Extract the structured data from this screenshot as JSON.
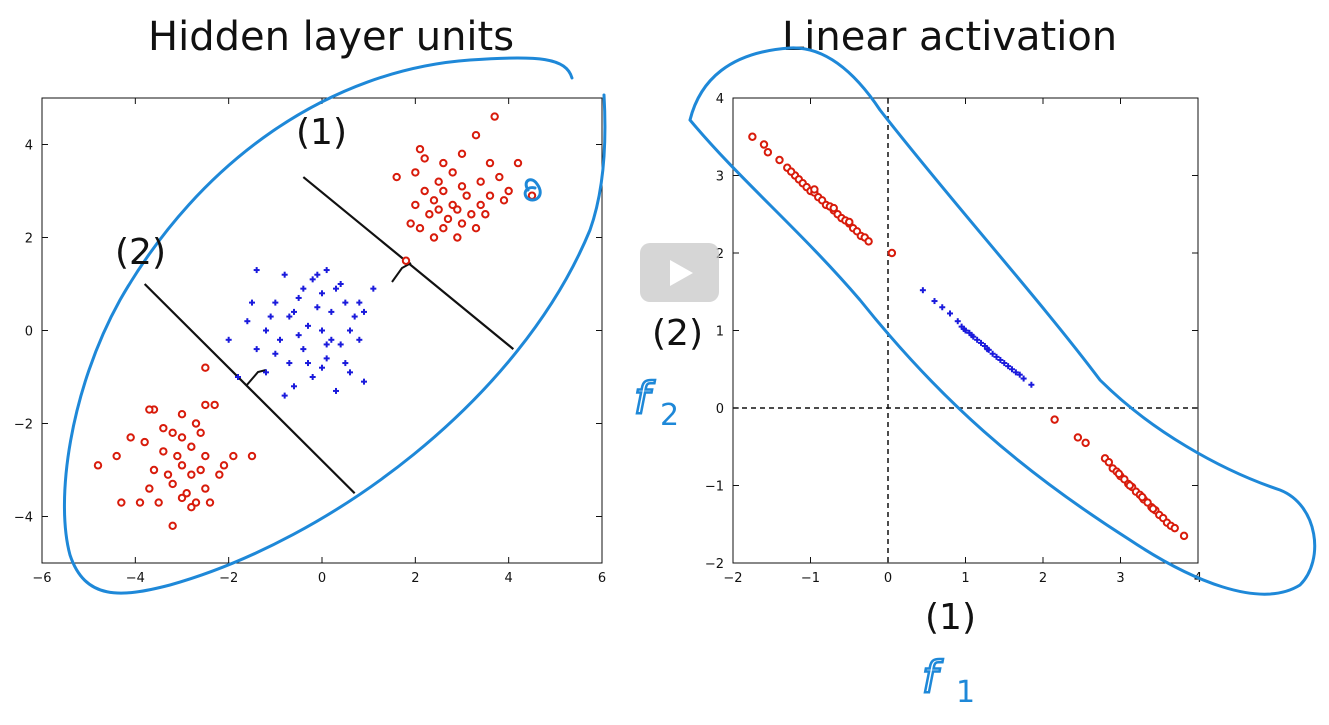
{
  "titles": {
    "left": "Hidden layer units",
    "right": "Linear activation"
  },
  "annotations": {
    "left_line1": "(1)",
    "left_line2": "(2)",
    "right_x": "(1)",
    "right_y": "(2)",
    "hand_f1": "f",
    "hand_f1_sub": "1",
    "hand_f2": "f",
    "hand_f2_sub": "2"
  },
  "colors": {
    "red": "#d81b0b",
    "blue": "#1a1adc",
    "ink": "#1e88d8"
  },
  "chart_data": [
    {
      "type": "scatter",
      "title": "",
      "xlim": [
        -6,
        6
      ],
      "ylim": [
        -5,
        5
      ],
      "xticks": [
        -6,
        -4,
        -2,
        0,
        2,
        4,
        6
      ],
      "yticks": [
        -4,
        -2,
        0,
        2,
        4
      ],
      "series": [
        {
          "marker": "o",
          "color": "#d81b0b",
          "points": [
            [
              2.1,
              3.9
            ],
            [
              2.6,
              3.6
            ],
            [
              3.0,
              3.8
            ],
            [
              3.4,
              3.2
            ],
            [
              3.7,
              4.6
            ],
            [
              3.3,
              4.2
            ],
            [
              2.5,
              3.2
            ],
            [
              2.2,
              3.0
            ],
            [
              2.0,
              3.4
            ],
            [
              1.6,
              3.3
            ],
            [
              2.4,
              2.8
            ],
            [
              2.8,
              2.7
            ],
            [
              3.1,
              2.9
            ],
            [
              3.6,
              3.6
            ],
            [
              3.8,
              3.3
            ],
            [
              4.2,
              3.6
            ],
            [
              4.0,
              3.0
            ],
            [
              3.5,
              2.5
            ],
            [
              3.0,
              2.3
            ],
            [
              2.6,
              2.2
            ],
            [
              2.3,
              2.5
            ],
            [
              2.0,
              2.7
            ],
            [
              1.9,
              2.3
            ],
            [
              2.4,
              2.0
            ],
            [
              2.9,
              2.0
            ],
            [
              3.3,
              2.2
            ],
            [
              3.4,
              2.7
            ],
            [
              2.8,
              3.4
            ],
            [
              3.0,
              3.1
            ],
            [
              2.7,
              2.4
            ],
            [
              2.1,
              2.2
            ],
            [
              2.5,
              2.6
            ],
            [
              3.2,
              2.5
            ],
            [
              2.6,
              3.0
            ],
            [
              3.9,
              2.8
            ],
            [
              3.6,
              2.9
            ],
            [
              2.2,
              3.7
            ],
            [
              1.8,
              1.5
            ],
            [
              4.5,
              2.9
            ],
            [
              2.9,
              2.6
            ],
            [
              -3.0,
              -1.8
            ],
            [
              -3.6,
              -1.7
            ],
            [
              -3.2,
              -2.2
            ],
            [
              -2.8,
              -2.5
            ],
            [
              -2.5,
              -2.7
            ],
            [
              -2.6,
              -2.2
            ],
            [
              -3.4,
              -2.6
            ],
            [
              -3.8,
              -2.4
            ],
            [
              -4.1,
              -2.3
            ],
            [
              -3.0,
              -2.9
            ],
            [
              -2.8,
              -3.1
            ],
            [
              -2.5,
              -3.4
            ],
            [
              -3.2,
              -3.3
            ],
            [
              -3.6,
              -3.0
            ],
            [
              -4.4,
              -2.7
            ],
            [
              -4.8,
              -2.9
            ],
            [
              -4.3,
              -3.7
            ],
            [
              -3.5,
              -3.7
            ],
            [
              -3.0,
              -3.6
            ],
            [
              -2.7,
              -3.7
            ],
            [
              -2.4,
              -3.7
            ],
            [
              -3.2,
              -4.2
            ],
            [
              -3.7,
              -3.4
            ],
            [
              -2.9,
              -3.5
            ],
            [
              -2.6,
              -3.0
            ],
            [
              -2.2,
              -3.1
            ],
            [
              -1.5,
              -2.7
            ],
            [
              -1.9,
              -2.7
            ],
            [
              -2.3,
              -1.6
            ],
            [
              -2.5,
              -1.6
            ],
            [
              -2.5,
              -0.8
            ],
            [
              -3.1,
              -2.7
            ],
            [
              -2.7,
              -2.0
            ],
            [
              -3.0,
              -2.3
            ],
            [
              -3.4,
              -2.1
            ],
            [
              -2.8,
              -3.8
            ],
            [
              -3.7,
              -1.7
            ],
            [
              -3.3,
              -3.1
            ],
            [
              -2.1,
              -2.9
            ],
            [
              -3.9,
              -3.7
            ]
          ]
        },
        {
          "marker": "+",
          "color": "#1a1adc",
          "points": [
            [
              -1.4,
              1.3
            ],
            [
              -0.8,
              1.2
            ],
            [
              -0.2,
              1.1
            ],
            [
              0.1,
              1.3
            ],
            [
              0.4,
              1.0
            ],
            [
              1.1,
              0.9
            ],
            [
              -1.0,
              0.6
            ],
            [
              -0.5,
              0.7
            ],
            [
              0.0,
              0.8
            ],
            [
              0.5,
              0.6
            ],
            [
              0.9,
              0.4
            ],
            [
              -1.6,
              0.2
            ],
            [
              -1.2,
              0.0
            ],
            [
              -0.7,
              0.3
            ],
            [
              -0.3,
              0.1
            ],
            [
              0.2,
              0.4
            ],
            [
              0.6,
              0.0
            ],
            [
              0.8,
              -0.2
            ],
            [
              -2.0,
              -0.2
            ],
            [
              -1.4,
              -0.4
            ],
            [
              -0.9,
              -0.2
            ],
            [
              -0.4,
              -0.4
            ],
            [
              0.1,
              -0.6
            ],
            [
              0.4,
              -0.3
            ],
            [
              0.9,
              -1.1
            ],
            [
              -1.2,
              -0.9
            ],
            [
              -0.6,
              -1.2
            ],
            [
              -0.2,
              -1.0
            ],
            [
              0.3,
              -1.3
            ],
            [
              -1.8,
              -1.0
            ],
            [
              -0.7,
              -0.7
            ],
            [
              0.0,
              0.0
            ],
            [
              0.2,
              -0.2
            ],
            [
              -0.4,
              0.9
            ],
            [
              -0.1,
              0.5
            ],
            [
              0.7,
              0.3
            ],
            [
              -1.1,
              0.3
            ],
            [
              -0.3,
              -0.7
            ],
            [
              -0.8,
              -1.4
            ],
            [
              0.6,
              -0.9
            ],
            [
              -1.5,
              0.6
            ],
            [
              0.3,
              0.9
            ],
            [
              -0.1,
              1.2
            ],
            [
              0.8,
              0.6
            ],
            [
              -0.5,
              -0.1
            ],
            [
              0.1,
              -0.3
            ],
            [
              -1.0,
              -0.5
            ],
            [
              0.5,
              -0.7
            ],
            [
              -0.6,
              0.4
            ],
            [
              0.0,
              -0.8
            ]
          ]
        }
      ],
      "lines": [
        {
          "label": "(1)",
          "x": [
            -0.4,
            4.1
          ],
          "y": [
            3.3,
            -0.4
          ]
        },
        {
          "label": "(2)",
          "x": [
            -3.8,
            0.7
          ],
          "y": [
            1.0,
            -3.5
          ]
        }
      ]
    },
    {
      "type": "scatter",
      "title": "",
      "xlim": [
        -2,
        4
      ],
      "ylim": [
        -2,
        4
      ],
      "xticks": [
        -2,
        -1,
        0,
        1,
        2,
        3,
        4
      ],
      "yticks": [
        -2,
        -1,
        0,
        1,
        2,
        3,
        4
      ],
      "series": [
        {
          "marker": "o",
          "color": "#d81b0b",
          "points": [
            [
              -1.75,
              3.5
            ],
            [
              -1.6,
              3.4
            ],
            [
              -1.55,
              3.3
            ],
            [
              -1.4,
              3.2
            ],
            [
              -1.3,
              3.1
            ],
            [
              -1.2,
              3.0
            ],
            [
              -1.15,
              2.95
            ],
            [
              -1.1,
              2.9
            ],
            [
              -1.05,
              2.85
            ],
            [
              -1.0,
              2.8
            ],
            [
              -0.95,
              2.78
            ],
            [
              -0.9,
              2.72
            ],
            [
              -0.85,
              2.68
            ],
            [
              -0.8,
              2.62
            ],
            [
              -0.75,
              2.6
            ],
            [
              -0.7,
              2.55
            ],
            [
              -0.65,
              2.5
            ],
            [
              -0.6,
              2.45
            ],
            [
              -0.55,
              2.42
            ],
            [
              -0.5,
              2.38
            ],
            [
              -0.45,
              2.32
            ],
            [
              -0.4,
              2.28
            ],
            [
              -0.35,
              2.22
            ],
            [
              -0.3,
              2.2
            ],
            [
              -0.25,
              2.15
            ],
            [
              0.05,
              2.0
            ],
            [
              -1.25,
              3.05
            ],
            [
              -0.95,
              2.82
            ],
            [
              -0.7,
              2.58
            ],
            [
              -0.5,
              2.4
            ],
            [
              2.15,
              -0.15
            ],
            [
              2.45,
              -0.38
            ],
            [
              2.55,
              -0.45
            ],
            [
              2.8,
              -0.65
            ],
            [
              2.85,
              -0.7
            ],
            [
              2.9,
              -0.78
            ],
            [
              2.95,
              -0.82
            ],
            [
              3.0,
              -0.88
            ],
            [
              3.05,
              -0.92
            ],
            [
              3.1,
              -0.98
            ],
            [
              3.15,
              -1.02
            ],
            [
              3.2,
              -1.08
            ],
            [
              3.25,
              -1.12
            ],
            [
              3.3,
              -1.18
            ],
            [
              3.35,
              -1.22
            ],
            [
              3.4,
              -1.28
            ],
            [
              3.45,
              -1.32
            ],
            [
              3.5,
              -1.38
            ],
            [
              3.55,
              -1.42
            ],
            [
              3.6,
              -1.48
            ],
            [
              3.65,
              -1.52
            ],
            [
              3.7,
              -1.55
            ],
            [
              3.82,
              -1.65
            ],
            [
              2.98,
              -0.85
            ],
            [
              3.12,
              -1.0
            ],
            [
              3.28,
              -1.15
            ],
            [
              3.42,
              -1.3
            ]
          ]
        },
        {
          "marker": "+",
          "color": "#1a1adc",
          "points": [
            [
              0.45,
              1.52
            ],
            [
              0.6,
              1.38
            ],
            [
              0.7,
              1.3
            ],
            [
              0.8,
              1.22
            ],
            [
              0.9,
              1.12
            ],
            [
              0.95,
              1.05
            ],
            [
              1.0,
              1.0
            ],
            [
              1.05,
              0.97
            ],
            [
              1.1,
              0.92
            ],
            [
              1.15,
              0.88
            ],
            [
              1.2,
              0.84
            ],
            [
              1.25,
              0.8
            ],
            [
              1.3,
              0.75
            ],
            [
              1.35,
              0.7
            ],
            [
              1.4,
              0.66
            ],
            [
              1.45,
              0.62
            ],
            [
              1.5,
              0.58
            ],
            [
              1.55,
              0.54
            ],
            [
              1.6,
              0.5
            ],
            [
              1.65,
              0.46
            ],
            [
              1.7,
              0.43
            ],
            [
              1.75,
              0.38
            ],
            [
              1.85,
              0.3
            ],
            [
              0.98,
              1.02
            ],
            [
              1.08,
              0.94
            ],
            [
              1.28,
              0.76
            ]
          ]
        }
      ]
    }
  ]
}
